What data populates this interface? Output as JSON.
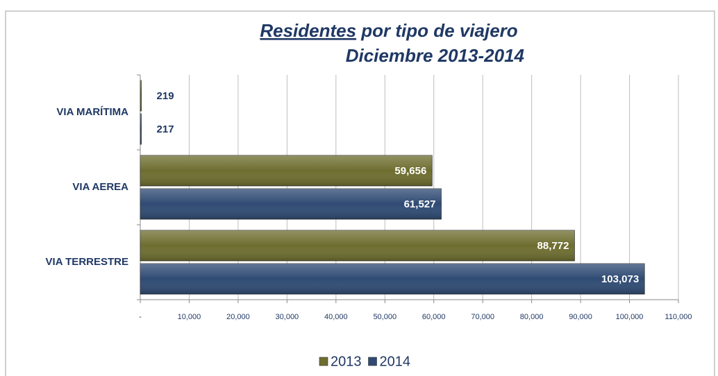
{
  "chart_data": {
    "type": "bar",
    "orientation": "horizontal",
    "title": [
      "Residentes",
      "por tipo de viajero"
    ],
    "subtitle": "Diciembre 2013-2014",
    "categories": [
      "VIA MARÍTIMA",
      "VIA AEREA",
      "VIA TERRESTRE"
    ],
    "series": [
      {
        "name": "2013",
        "color": "#6e6e30",
        "values": [
          219,
          59656,
          88772
        ],
        "value_labels": [
          "219",
          "59,656",
          "88,772"
        ]
      },
      {
        "name": "2014",
        "color": "#2f4b74",
        "values": [
          217,
          61527,
          103073
        ],
        "value_labels": [
          "217",
          "61,527",
          "103,073"
        ]
      }
    ],
    "xlim": [
      0,
      110000
    ],
    "xticks": [
      {
        "value": 0,
        "label": "-"
      },
      {
        "value": 10000,
        "label": "10,000"
      },
      {
        "value": 20000,
        "label": "20,000"
      },
      {
        "value": 30000,
        "label": "30,000"
      },
      {
        "value": 40000,
        "label": "40,000"
      },
      {
        "value": 50000,
        "label": "50,000"
      },
      {
        "value": 60000,
        "label": "60,000"
      },
      {
        "value": 70000,
        "label": "70,000"
      },
      {
        "value": 80000,
        "label": "80,000"
      },
      {
        "value": 90000,
        "label": "90,000"
      },
      {
        "value": 100000,
        "label": "100,000"
      },
      {
        "value": 110000,
        "label": "110,000"
      }
    ],
    "grid": true,
    "legend": "bottom"
  }
}
